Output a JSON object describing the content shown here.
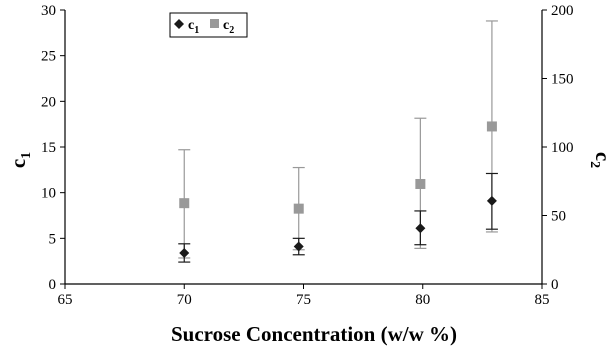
{
  "chart_data": {
    "type": "scatter",
    "xlabel": "Sucrose Concentration (w/w %)",
    "ylabel_left_main": "c",
    "ylabel_left_sub": "1",
    "ylabel_right_main": "c",
    "ylabel_right_sub": "2",
    "xlim": [
      65,
      85
    ],
    "xticks": [
      "65",
      "70",
      "75",
      "80",
      "85"
    ],
    "ylim_left": [
      0,
      30
    ],
    "yticks_left": [
      "0",
      "5",
      "10",
      "15",
      "20",
      "25",
      "30"
    ],
    "ylim_right": [
      0,
      200
    ],
    "yticks_right": [
      "0",
      "50",
      "100",
      "150",
      "200"
    ],
    "grid": false,
    "legend_position": "top-left",
    "series": [
      {
        "name_main": "c",
        "name_sub": "1",
        "axis": "left",
        "marker": "diamond",
        "color": "#1a1a1a",
        "points": [
          {
            "x": 70.0,
            "y": 3.4,
            "low": 2.4,
            "high": 4.4
          },
          {
            "x": 74.8,
            "y": 4.1,
            "low": 3.2,
            "high": 5.0
          },
          {
            "x": 79.9,
            "y": 6.1,
            "low": 4.3,
            "high": 8.0
          },
          {
            "x": 82.9,
            "y": 9.1,
            "low": 6.0,
            "high": 12.1
          }
        ]
      },
      {
        "name_main": "c",
        "name_sub": "2",
        "axis": "right",
        "marker": "square",
        "color": "#999999",
        "points": [
          {
            "x": 70.0,
            "y": 59,
            "low": 19,
            "high": 98
          },
          {
            "x": 74.8,
            "y": 55,
            "low": 25,
            "high": 85
          },
          {
            "x": 79.9,
            "y": 73,
            "low": 26,
            "high": 121
          },
          {
            "x": 82.9,
            "y": 115,
            "low": 38,
            "high": 192
          }
        ]
      }
    ]
  }
}
